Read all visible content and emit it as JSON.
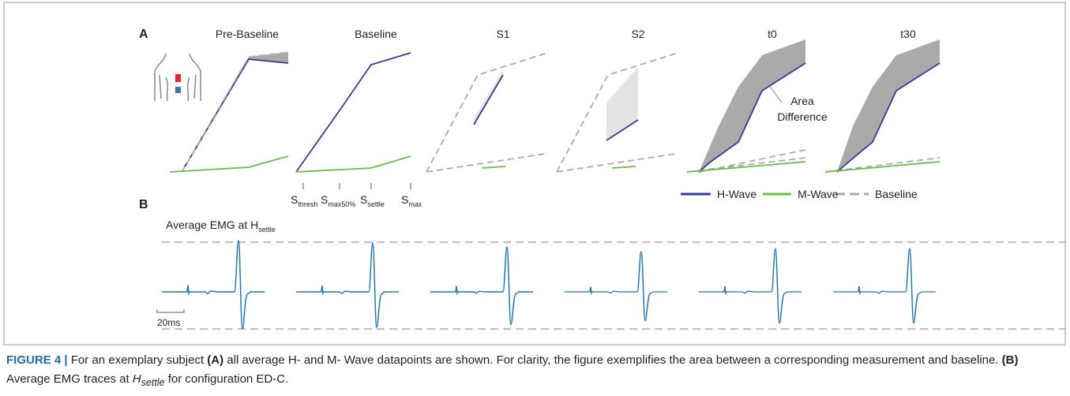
{
  "panel_a": {
    "label": "A",
    "titles": [
      "Pre-Baseline",
      "Baseline",
      "S1",
      "S2",
      "t0",
      "t30"
    ],
    "ticks": [
      {
        "main": "S",
        "sub": "thresh"
      },
      {
        "main": "S",
        "sub": "max50%"
      },
      {
        "main": "S",
        "sub": "settle"
      },
      {
        "main": "S",
        "sub": "max"
      }
    ],
    "annotation": [
      "Area",
      "Difference"
    ],
    "legend": [
      "H-Wave",
      "M-Wave",
      "Baseline"
    ]
  },
  "panel_b": {
    "label": "B",
    "title": {
      "main": "Average EMG at H",
      "sub": "settle"
    },
    "scale": "20ms"
  },
  "caption": {
    "figure": "FIGURE 4 |",
    "p1": " For an exemplary subject ",
    "a": "(A)",
    "p2": " all average H- and M- Wave datapoints are shown. For clarity, the figure exemplifies the area between a corresponding measurement and baseline. ",
    "b": "(B)",
    "p3": " Average EMG traces at ",
    "h": "H",
    "hsub": "settle",
    "p4": " for configuration ED-C."
  }
}
